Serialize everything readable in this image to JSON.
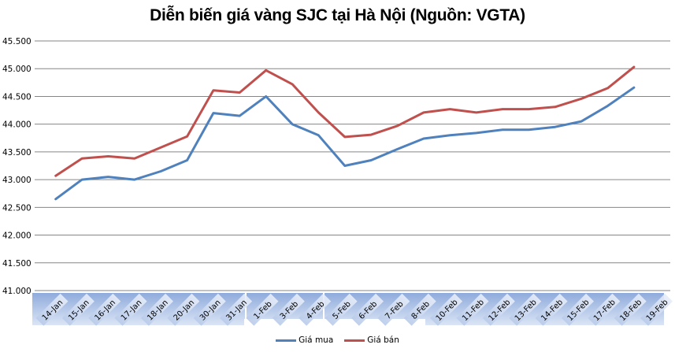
{
  "chart_data": {
    "type": "line",
    "title": "Diễn biến giá vàng SJC tại Hà Nội (Nguồn: VGTA)",
    "xlabel": "",
    "ylabel": "",
    "ylim": [
      41.0,
      45.5
    ],
    "yticks": [
      41.0,
      41.5,
      42.0,
      42.5,
      43.0,
      43.5,
      44.0,
      44.5,
      45.0,
      45.5
    ],
    "ytick_labels": [
      "41.000",
      "41.500",
      "42.000",
      "42.500",
      "43.000",
      "43.500",
      "44.000",
      "44.500",
      "45.000",
      "45.500"
    ],
    "grid": true,
    "legend_position": "bottom",
    "categories": [
      "14-Jan",
      "15-Jan",
      "16-Jan",
      "17-Jan",
      "18-Jan",
      "20-Jan",
      "30-Jan",
      "31-Jan",
      "1-Feb",
      "3-Feb",
      "4-Feb",
      "5-Feb",
      "6-Feb",
      "7-Feb",
      "8-Feb",
      "10-Feb",
      "11-Feb",
      "12-Feb",
      "13-Feb",
      "14-Feb",
      "15-Feb",
      "17-Feb",
      "18-Feb",
      "19-Feb"
    ],
    "series": [
      {
        "name": "Giá mua",
        "color": "#4f81bd",
        "values": [
          42.65,
          43.0,
          43.05,
          43.0,
          43.15,
          43.35,
          44.2,
          44.15,
          44.5,
          44.0,
          43.8,
          43.25,
          43.35,
          43.55,
          43.74,
          43.8,
          43.84,
          43.9,
          43.9,
          43.95,
          44.05,
          44.33,
          44.66,
          null
        ]
      },
      {
        "name": "Giá bán",
        "color": "#c0504d",
        "values": [
          43.07,
          43.38,
          43.42,
          43.38,
          43.58,
          43.78,
          44.61,
          44.57,
          44.97,
          44.72,
          44.21,
          43.77,
          43.81,
          43.97,
          44.21,
          44.27,
          44.21,
          44.27,
          44.27,
          44.31,
          44.46,
          44.65,
          45.03,
          null
        ]
      }
    ]
  },
  "legend": {
    "items": [
      {
        "label": "Giá mua",
        "color": "#4f81bd"
      },
      {
        "label": "Giá bán",
        "color": "#c0504d"
      }
    ]
  }
}
